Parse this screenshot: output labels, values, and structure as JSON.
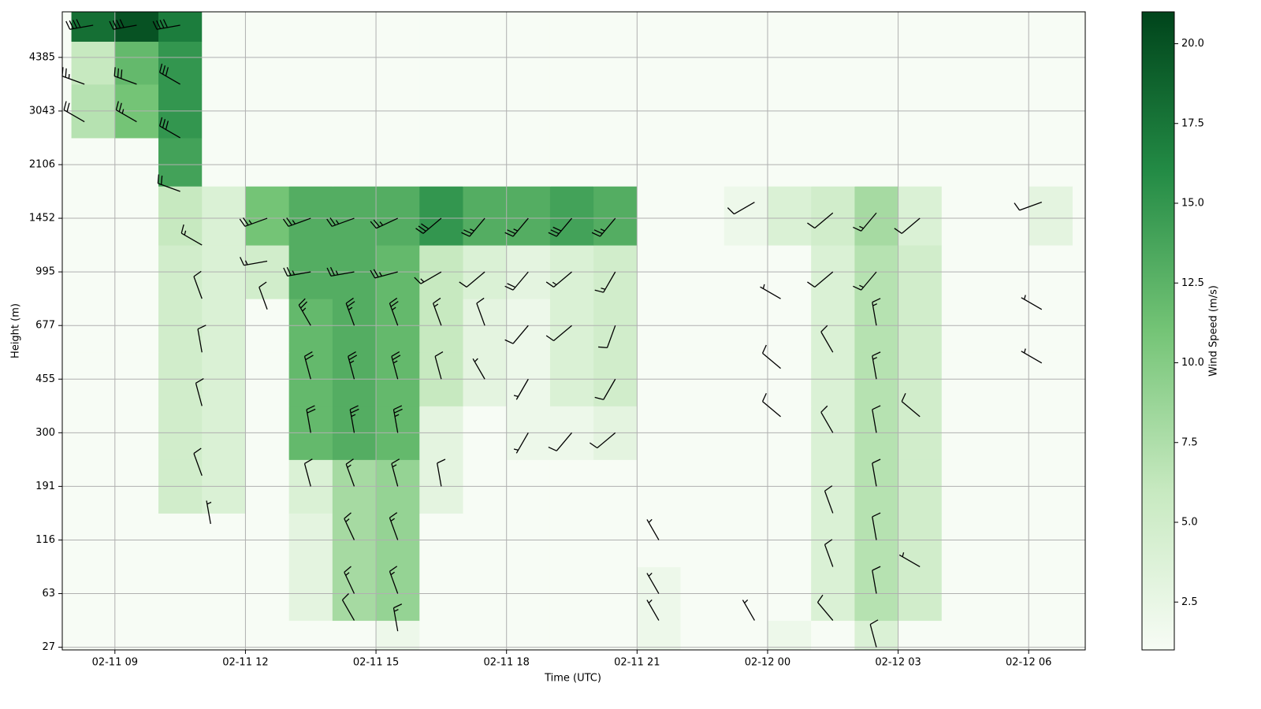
{
  "chart_data": {
    "type": "wind_profile",
    "xlabel": "Time (UTC)",
    "ylabel": "Height (m)",
    "colorbar_label": "Wind Speed (m/s)",
    "xlim": [
      7.79,
      31.3
    ],
    "xticks": [
      {
        "value": 9,
        "label": "02-11 09"
      },
      {
        "value": 12,
        "label": "02-11 12"
      },
      {
        "value": 15,
        "label": "02-11 15"
      },
      {
        "value": 18,
        "label": "02-11 18"
      },
      {
        "value": 21,
        "label": "02-11 21"
      },
      {
        "value": 24,
        "label": "02-12 00"
      },
      {
        "value": 27,
        "label": "02-12 03"
      },
      {
        "value": 30,
        "label": "02-12 06"
      }
    ],
    "ylim": [
      -0.05,
      11.85
    ],
    "yticks": [
      {
        "value": 0,
        "label": "27"
      },
      {
        "value": 1,
        "label": "63"
      },
      {
        "value": 2,
        "label": "116"
      },
      {
        "value": 3,
        "label": "191"
      },
      {
        "value": 4,
        "label": "300"
      },
      {
        "value": 5,
        "label": "455"
      },
      {
        "value": 6,
        "label": "677"
      },
      {
        "value": 7,
        "label": "995"
      },
      {
        "value": 8,
        "label": "1452"
      },
      {
        "value": 9,
        "label": "2106"
      },
      {
        "value": 10,
        "label": "3043"
      },
      {
        "value": 11,
        "label": "4385"
      }
    ],
    "clim": [
      1.0,
      21.0
    ],
    "cticks": [
      2.5,
      {
        "value": 5,
        "label": "5.0"
      },
      7.5,
      {
        "value": 10,
        "label": "10.0"
      },
      12.5,
      {
        "value": 15,
        "label": "15.0"
      },
      17.5,
      {
        "value": 20,
        "label": "20.0"
      }
    ],
    "colormap": [
      "#f7fcf5",
      "#c7e9c0",
      "#74c476",
      "#238b45",
      "#00441b"
    ],
    "grid": true,
    "speed_grid": {
      "x_edges": [
        8,
        9,
        10,
        11,
        12,
        13,
        14,
        15,
        16,
        17,
        18,
        19,
        20,
        21,
        22,
        23,
        24,
        25,
        26,
        27,
        28,
        29,
        30,
        31
      ],
      "y_edges": [
        -0.05,
        0.5,
        1.5,
        2.5,
        3.5,
        4.5,
        5.5,
        6.5,
        7.5,
        8.6,
        9.5,
        10.5,
        11.3,
        11.85
      ],
      "values": [
        [
          1,
          1,
          1,
          1,
          1,
          1,
          1,
          2,
          1,
          1,
          1,
          1,
          1,
          2,
          1,
          1,
          2,
          1,
          4,
          1,
          1,
          1,
          1
        ],
        [
          1,
          1,
          1,
          1,
          1,
          3,
          8,
          9,
          1,
          1,
          1,
          1,
          1,
          2,
          1,
          1,
          1,
          4,
          7,
          5,
          1,
          1,
          1
        ],
        [
          1,
          1,
          1,
          1,
          1,
          3,
          8,
          9,
          1,
          1,
          1,
          1,
          1,
          1,
          1,
          1,
          1,
          4,
          7,
          5,
          1,
          1,
          1
        ],
        [
          1,
          1,
          5,
          4,
          1,
          4,
          8,
          9,
          3,
          1,
          1,
          1,
          1,
          1,
          1,
          1,
          1,
          4,
          7,
          5,
          1,
          1,
          1
        ],
        [
          1,
          1,
          5,
          4,
          1,
          12,
          13,
          12,
          3,
          1,
          2,
          2,
          3,
          1,
          1,
          1,
          1,
          4,
          7,
          5,
          1,
          1,
          1
        ],
        [
          1,
          1,
          5,
          4,
          1,
          12,
          13,
          12,
          6,
          3,
          2,
          4,
          5,
          1,
          1,
          1,
          1,
          4,
          7,
          5,
          1,
          1,
          1
        ],
        [
          1,
          1,
          5,
          4,
          1,
          12,
          13,
          12,
          6,
          3,
          2,
          4,
          5,
          1,
          1,
          1,
          1,
          4,
          7,
          5,
          1,
          1,
          1
        ],
        [
          1,
          1,
          5,
          4,
          5,
          13,
          13,
          12,
          6,
          4,
          3,
          4,
          5,
          1,
          1,
          1,
          1,
          4,
          7,
          5,
          1,
          1,
          1
        ],
        [
          1,
          1,
          6,
          4,
          11,
          13,
          13,
          13,
          15,
          13,
          13,
          14,
          13,
          1,
          1,
          2,
          4,
          5,
          8,
          4,
          1,
          1,
          3
        ],
        [
          1,
          1,
          14,
          1,
          1,
          1,
          1,
          1,
          1,
          1,
          1,
          1,
          1,
          1,
          1,
          1,
          1,
          1,
          1,
          1,
          1,
          1,
          1
        ],
        [
          7,
          11,
          15,
          1,
          1,
          1,
          1,
          1,
          1,
          1,
          1,
          1,
          1,
          1,
          1,
          1,
          1,
          1,
          1,
          1,
          1,
          1,
          1
        ],
        [
          6,
          12,
          15,
          1,
          1,
          1,
          1,
          1,
          1,
          1,
          1,
          1,
          1,
          1,
          1,
          1,
          1,
          1,
          1,
          1,
          1,
          1,
          1
        ],
        [
          18,
          20,
          17,
          1,
          1,
          1,
          1,
          1,
          1,
          1,
          1,
          1,
          1,
          1,
          1,
          1,
          1,
          1,
          1,
          1,
          1,
          1,
          1
        ]
      ]
    },
    "barbs": {
      "x": [
        8.5,
        9.5,
        10.5,
        8.3,
        9.5,
        10.5,
        8.3,
        9.5,
        10.5,
        10.5,
        11,
        11,
        11,
        11,
        11,
        11.2,
        12.5,
        12.5,
        12.5,
        13.5,
        13.5,
        13.5,
        13.5,
        13.5,
        13.5,
        14.5,
        14.5,
        14.5,
        14.5,
        14.5,
        14.5,
        14.5,
        14.5,
        14.5,
        15.5,
        15.5,
        15.5,
        15.5,
        15.5,
        15.5,
        15.5,
        15.5,
        15.5,
        16.5,
        16.5,
        16.5,
        16.5,
        16.5,
        17.5,
        17.5,
        17.5,
        17.5,
        18.5,
        18.5,
        18.5,
        18.5,
        18.5,
        19.5,
        19.5,
        19.5,
        19.5,
        20.5,
        20.5,
        20.5,
        20.5,
        20.5,
        21.5,
        21.5,
        21.5,
        23.7,
        23.7,
        24.3,
        24.3,
        24.3,
        25.5,
        25.5,
        25.5,
        25.5,
        25.5,
        25.5,
        25.5,
        26.5,
        26.5,
        26.5,
        26.5,
        26.5,
        26.5,
        26.5,
        26.5,
        26.5,
        27.5,
        27.5,
        27.5,
        30.3,
        30.3,
        30.3
      ],
      "y": [
        11.6,
        11.6,
        11.6,
        10.5,
        10.5,
        10.5,
        9.8,
        9.8,
        9.5,
        8.5,
        7.5,
        6.5,
        5.5,
        4.5,
        3.2,
        2.3,
        8,
        7.2,
        6.3,
        8,
        7,
        6,
        5,
        4,
        3,
        8,
        7,
        6,
        5,
        4,
        3,
        2,
        1,
        0.5,
        8,
        7,
        6,
        5,
        4,
        3,
        2,
        1,
        0.3,
        8,
        7,
        6,
        5,
        3,
        8,
        7,
        6,
        5,
        8,
        7,
        6,
        5,
        4,
        8,
        7,
        6,
        4,
        8,
        7,
        6,
        5,
        4,
        2,
        1,
        0.5,
        8.3,
        0.5,
        6.5,
        5.2,
        4.3,
        8.1,
        7,
        5.5,
        4,
        2.5,
        1.5,
        0.5,
        8.1,
        7,
        6,
        5,
        4,
        3,
        2,
        1,
        0,
        8,
        4.3,
        1.5,
        8.3,
        6.3,
        5.3
      ],
      "speed": [
        20,
        21,
        20,
        12,
        15,
        16,
        10,
        14,
        15,
        10,
        8,
        5,
        6,
        5,
        4,
        3,
        12,
        9,
        5,
        14,
        13,
        12,
        11,
        10,
        6,
        14,
        13,
        13,
        13,
        12,
        9,
        8,
        7,
        6,
        13,
        12,
        12,
        12,
        12,
        9,
        9,
        8,
        7,
        16,
        8,
        7,
        5,
        4,
        14,
        5,
        4,
        3,
        14,
        10,
        4,
        3,
        3,
        15,
        9,
        4,
        4,
        14,
        9,
        5,
        4,
        4,
        3,
        3,
        2,
        4,
        3,
        3,
        4,
        4,
        6,
        5,
        5,
        5,
        4,
        4,
        4,
        8,
        8,
        7,
        7,
        6,
        6,
        6,
        6,
        5,
        6,
        4,
        3,
        4,
        3,
        3
      ],
      "direction": [
        260,
        260,
        260,
        290,
        290,
        300,
        300,
        300,
        300,
        290,
        300,
        340,
        350,
        345,
        340,
        350,
        250,
        260,
        340,
        250,
        260,
        330,
        345,
        350,
        345,
        250,
        260,
        340,
        345,
        350,
        340,
        335,
        335,
        330,
        245,
        255,
        340,
        345,
        350,
        345,
        340,
        340,
        350,
        230,
        240,
        340,
        345,
        350,
        220,
        230,
        340,
        330,
        220,
        220,
        220,
        210,
        210,
        220,
        230,
        230,
        220,
        220,
        210,
        200,
        210,
        230,
        330,
        330,
        330,
        240,
        330,
        300,
        310,
        310,
        230,
        230,
        330,
        330,
        340,
        340,
        320,
        220,
        220,
        350,
        350,
        350,
        350,
        350,
        350,
        345,
        230,
        310,
        300,
        250,
        300,
        300
      ]
    }
  }
}
